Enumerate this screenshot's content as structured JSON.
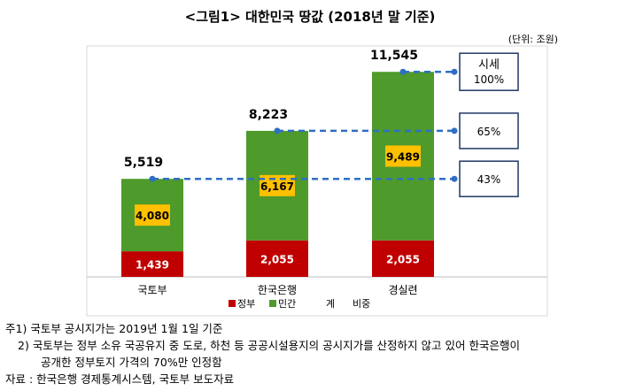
{
  "title": "<그림1> 대한민국 땅값 (2018년 말 기준)",
  "unit_label": "(단위: 조원)",
  "chart_data": {
    "type": "bar",
    "stacked": true,
    "categories": [
      "국토부",
      "한국은행",
      "경실련"
    ],
    "series": [
      {
        "name": "정부",
        "values": [
          1439,
          2055,
          2055
        ],
        "color": "#c00000"
      },
      {
        "name": "민간",
        "values": [
          4080,
          6167,
          9489
        ],
        "color": "#4e9a2b"
      }
    ],
    "totals": [
      5519,
      8223,
      11545
    ],
    "total_labels": [
      "5,519",
      "8,223",
      "11,545"
    ],
    "segment_labels": {
      "정부": [
        "1,439",
        "2,055",
        "2,055"
      ],
      "민간": [
        "4,080",
        "6,167",
        "9,489"
      ]
    },
    "ratio_boxes": [
      {
        "label_lines": [
          "시세",
          "100%"
        ],
        "level": 11545
      },
      {
        "label_lines": [
          "65%"
        ],
        "level": 8223
      },
      {
        "label_lines": [
          "43%"
        ],
        "level": 5519
      }
    ],
    "legend_items": [
      "정부",
      "민간",
      "계",
      "비중"
    ],
    "legend_placement": "bottom",
    "ylim": [
      0,
      13000
    ],
    "grid": false
  },
  "notes": [
    {
      "prefix": "주1)",
      "text": "국토부 공시지가는 2019년 1월 1일 기준"
    },
    {
      "prefix": "2)",
      "text": "국토부는 정부 소유 국공유지 중 도로, 하천 등 공공시설용지의 공시지가를 산정하지 않고 있어 한국은행이"
    },
    {
      "prefix": "",
      "text": "공개한 정부토지 가격의 70%만 인정함"
    },
    {
      "prefix": "자료 :",
      "text": "한국은행 경제통계시스템, 국토부 보도자료"
    }
  ],
  "colors": {
    "government": "#c00000",
    "private": "#4e9a2b",
    "label_box": "#ffc000",
    "dashed_line": "#2e6fc4",
    "ratio_box_border": "#1f3864"
  }
}
